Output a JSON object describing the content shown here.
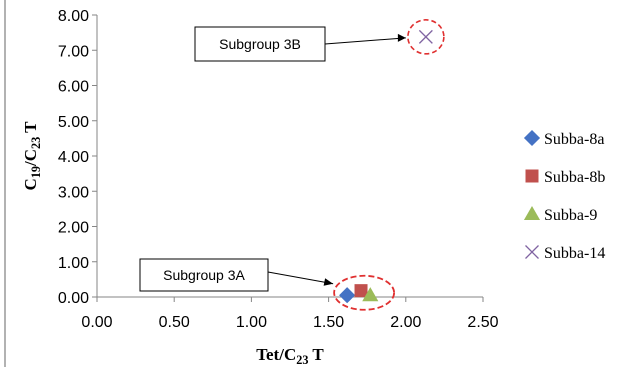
{
  "chart_data": {
    "type": "scatter",
    "xlabel": "Tet/C23 T",
    "ylabel": "C19/C23 T",
    "xlim": [
      0,
      2.5
    ],
    "ylim": [
      0,
      8
    ],
    "x_ticks": [
      "0.00",
      "0.50",
      "1.00",
      "1.50",
      "2.00",
      "2.50"
    ],
    "y_ticks": [
      "0.00",
      "1.00",
      "2.00",
      "3.00",
      "4.00",
      "5.00",
      "6.00",
      "7.00",
      "8.00"
    ],
    "grid": false,
    "legend_position": "right",
    "series": [
      {
        "name": "Subba-8a",
        "marker": "diamond",
        "color": "#4472C4",
        "x": [
          1.62
        ],
        "y": [
          0.05
        ]
      },
      {
        "name": "Subba-8b",
        "marker": "square",
        "color": "#C0504D",
        "x": [
          1.71
        ],
        "y": [
          0.18
        ]
      },
      {
        "name": "Subba-9",
        "marker": "triangle",
        "color": "#9BBB59",
        "x": [
          1.77
        ],
        "y": [
          0.05
        ]
      },
      {
        "name": "Subba-14",
        "marker": "x",
        "color": "#8064A2",
        "x": [
          2.13
        ],
        "y": [
          7.38
        ]
      }
    ],
    "annotations": [
      {
        "text": "Subgroup  3B",
        "target": [
          2.13,
          7.38
        ]
      },
      {
        "text": "Subgroup  3A",
        "target": [
          1.71,
          0.12
        ]
      }
    ]
  }
}
